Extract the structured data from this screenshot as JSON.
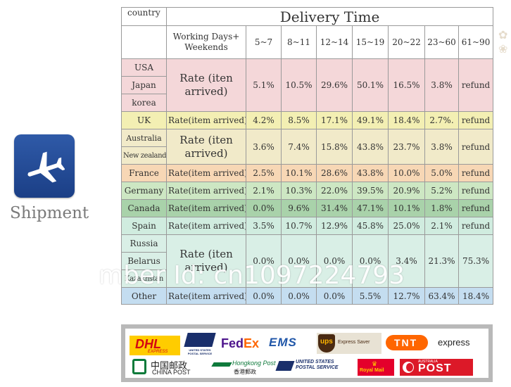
{
  "sidebar": {
    "label": "Shipment",
    "icon": "airplane-icon",
    "icon_color": "#244b96"
  },
  "table": {
    "corner_label": "country",
    "title": "Delivery Time",
    "working_days_label": "Working Days+ Weekends",
    "day_ranges": [
      "5~7",
      "8~11",
      "12~14",
      "15~19",
      "20~22",
      "23~60",
      "61~90"
    ],
    "rows": [
      {
        "countries": [
          "USA",
          "Japan",
          "korea"
        ],
        "rate_label": "Rate (iten arrived)",
        "values": [
          "5.1%",
          "10.5%",
          "29.6%",
          "50.1%",
          "16.5%",
          "3.8%",
          "refund"
        ],
        "color": "#f4d7d9"
      },
      {
        "countries": [
          "UK"
        ],
        "rate_label": "Rate(item arrived)",
        "values": [
          "4.2%",
          "8.5%",
          "17.1%",
          "49.1%",
          "18.4%",
          "2.7%.",
          "refund"
        ],
        "color": "#f3efb3"
      },
      {
        "countries": [
          "Australia",
          "New zealand"
        ],
        "rate_label": "Rate (iten arrived)",
        "values": [
          "3.6%",
          "7.4%",
          "15.8%",
          "43.8%",
          "23.7%",
          "3.8%",
          "refund"
        ],
        "color": "#f1eac9"
      },
      {
        "countries": [
          "France"
        ],
        "rate_label": "Rate(item arrived)",
        "values": [
          "2.5%",
          "10.1%",
          "28.6%",
          "43.8%",
          "10.0%",
          "5.0%",
          "refund"
        ],
        "color": "#f7d7b5"
      },
      {
        "countries": [
          "Germany"
        ],
        "rate_label": "Rate(item arrived)",
        "values": [
          "2.1%",
          "10.3%",
          "22.0%",
          "39.5%",
          "20.9%",
          "5.2%",
          "refund"
        ],
        "color": "#cde7c3"
      },
      {
        "countries": [
          "Canada"
        ],
        "rate_label": "Rate(item arrived)",
        "values": [
          "0.0%",
          "9.6%",
          "31.4%",
          "47.1%",
          "10.1%",
          "1.8%",
          "refund"
        ],
        "color": "#a9d2aa"
      },
      {
        "countries": [
          "Spain"
        ],
        "rate_label": "Rate(item arrived)",
        "values": [
          "3.5%",
          "10.7%",
          "12.9%",
          "45.8%",
          "25.0%",
          "2.1%",
          "refund"
        ],
        "color": "#d0ecdf"
      },
      {
        "countries": [
          "Russia",
          "Belarus",
          "Kazakhstan"
        ],
        "rate_label": "Rate (iten arrived)",
        "values": [
          "0.0%",
          "0.0%",
          "0.0%",
          "0.0%",
          "3.4%",
          "21.3%",
          "75.3%"
        ],
        "color": "#d9efe6"
      },
      {
        "countries": [
          "Other"
        ],
        "rate_label": "Rate(item arrived)",
        "values": [
          "0.0%",
          "0.0%",
          "0.0%",
          "5.5%",
          "12.7%",
          "63.4%",
          "18.4%"
        ],
        "color": "#c4ddf0"
      }
    ]
  },
  "watermark": "mber Id: cn1097224793",
  "carriers": {
    "dhl": "DHL",
    "dhl_sub": "EXPRESS",
    "usps": "UNITED STATES POSTAL SERVICE",
    "fedex_fed": "Fed",
    "fedex_ex": "Ex",
    "ems": "EMS",
    "ups": "ups",
    "ups_sub": "Express Saver",
    "tnt": "TNT",
    "tnt_express": "express",
    "china_post_cn": "中国邮政",
    "china_post_en": "CHINA POST",
    "hongkong_post": "Hongkong Post",
    "hongkong_post_cn": "香港郵政",
    "usps_postal": "UNITED STATES POSTAL SERVICE",
    "royal_mail": "Royal Mail",
    "auspost_small": "AUSTRALIA",
    "auspost": "POST"
  }
}
